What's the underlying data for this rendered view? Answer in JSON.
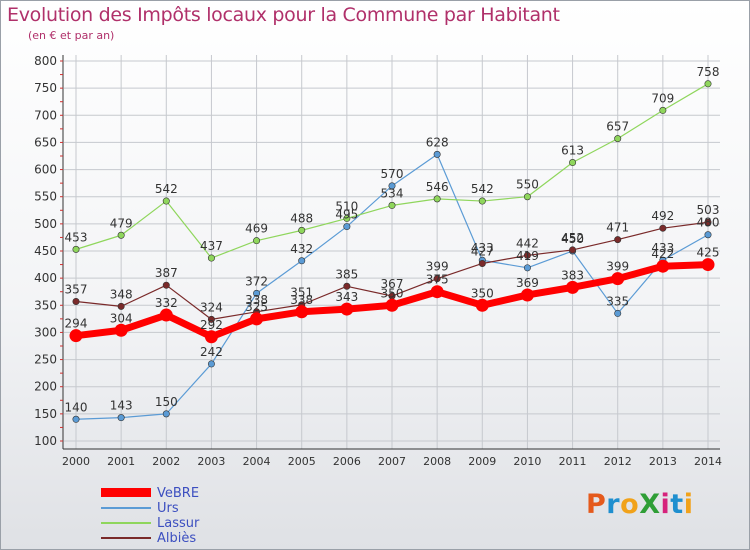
{
  "colors": {
    "title": "#b0306a",
    "legend_text": "#3c4fc0"
  },
  "logo": {
    "text": "ProXiti",
    "letter_colors": [
      "#e55a1c",
      "#1e8fcf",
      "#f1a21a",
      "#2f9e36",
      "#d6237c",
      "#1e8fcf",
      "#f1a21a"
    ]
  },
  "chart_data": {
    "type": "line",
    "title": "Evolution des Impôts locaux pour la Commune par Habitant",
    "subtitle": "(en € et par an)",
    "xlabel": "",
    "ylabel": "",
    "ylim": [
      100,
      800
    ],
    "yticks": [
      100,
      150,
      200,
      250,
      300,
      350,
      400,
      450,
      500,
      550,
      600,
      650,
      700,
      750,
      800
    ],
    "grid": true,
    "legend_position": "bottom-left",
    "categories": [
      "2000",
      "2001",
      "2002",
      "2003",
      "2004",
      "2005",
      "2006",
      "2007",
      "2008",
      "2009",
      "2010",
      "2011",
      "2012",
      "2013",
      "2014"
    ],
    "series": [
      {
        "name": "VeBRE",
        "color": "#ff0000",
        "bold": true,
        "values": [
          294,
          304,
          332,
          292,
          325,
          338,
          343,
          350,
          375,
          350,
          369,
          383,
          399,
          422,
          425
        ]
      },
      {
        "name": "Urs",
        "color": "#5b9bd5",
        "values": [
          140,
          143,
          150,
          242,
          372,
          432,
          495,
          570,
          628,
          433,
          419,
          450,
          335,
          433,
          480
        ]
      },
      {
        "name": "Lassur",
        "color": "#8fd65c",
        "values": [
          453,
          479,
          542,
          437,
          469,
          488,
          510,
          534,
          546,
          542,
          550,
          613,
          657,
          709,
          758
        ]
      },
      {
        "name": "Albiès",
        "color": "#7a2a2a",
        "values": [
          357,
          348,
          387,
          324,
          338,
          351,
          385,
          367,
          399,
          427,
          442,
          452,
          471,
          492,
          503
        ]
      }
    ]
  }
}
